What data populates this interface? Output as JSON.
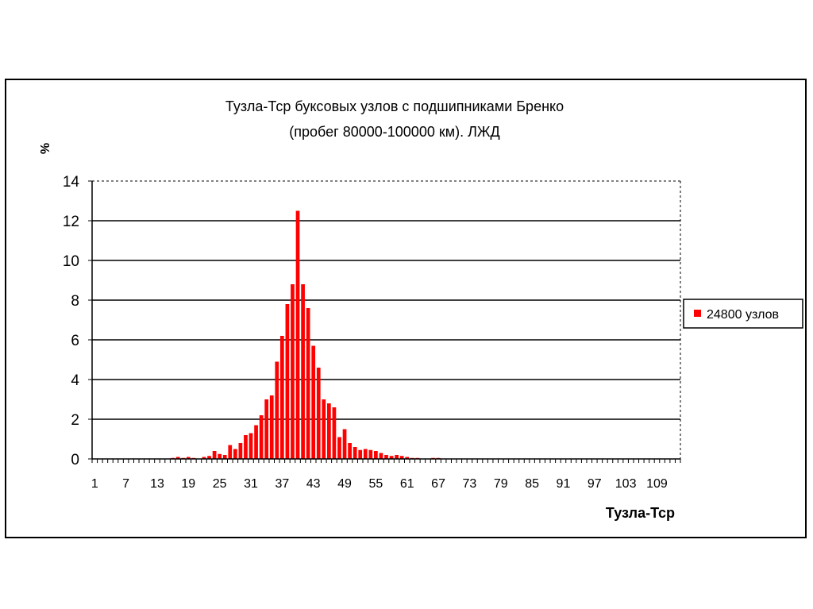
{
  "chart_data": {
    "type": "bar",
    "title": "Тузла-Тср буксовых узлов с подшипниками Бренко",
    "subtitle": "(пробег 80000-100000 км). ЛЖД",
    "ylabel": "%",
    "xlabel": "Тузла-Тср",
    "ylim": [
      0,
      14
    ],
    "yticks": [
      0,
      2,
      4,
      6,
      8,
      10,
      12,
      14
    ],
    "xtick_labels": [
      "1",
      "7",
      "13",
      "19",
      "25",
      "31",
      "37",
      "43",
      "49",
      "55",
      "61",
      "67",
      "73",
      "79",
      "85",
      "91",
      "97",
      "103",
      "109"
    ],
    "grid": true,
    "legend_position": "right",
    "colors": {
      "bar": "#ff0000",
      "grid": "#000000"
    },
    "series": [
      {
        "name": "24800 узлов",
        "x_start": 1,
        "x_end": 113,
        "values": [
          0,
          0,
          0,
          0,
          0,
          0,
          0,
          0,
          0,
          0,
          0,
          0,
          0,
          0,
          0,
          0.05,
          0.1,
          0.05,
          0.1,
          0.05,
          0,
          0.1,
          0.15,
          0.4,
          0.25,
          0.2,
          0.7,
          0.5,
          0.8,
          1.2,
          1.3,
          1.7,
          2.2,
          3.0,
          3.2,
          4.9,
          6.2,
          7.8,
          8.8,
          12.5,
          8.8,
          7.6,
          5.7,
          4.6,
          3.0,
          2.8,
          2.6,
          1.1,
          1.5,
          0.8,
          0.6,
          0.45,
          0.5,
          0.45,
          0.4,
          0.3,
          0.2,
          0.15,
          0.2,
          0.15,
          0.1,
          0.05,
          0.05,
          0,
          0,
          0.05,
          0.05,
          0,
          0,
          0,
          0,
          0,
          0,
          0,
          0,
          0,
          0,
          0,
          0,
          0,
          0,
          0,
          0,
          0,
          0,
          0,
          0,
          0,
          0,
          0,
          0,
          0,
          0,
          0,
          0,
          0,
          0,
          0,
          0,
          0,
          0,
          0,
          0,
          0,
          0,
          0,
          0,
          0,
          0,
          0,
          0,
          0,
          0,
          0,
          0
        ]
      }
    ]
  }
}
